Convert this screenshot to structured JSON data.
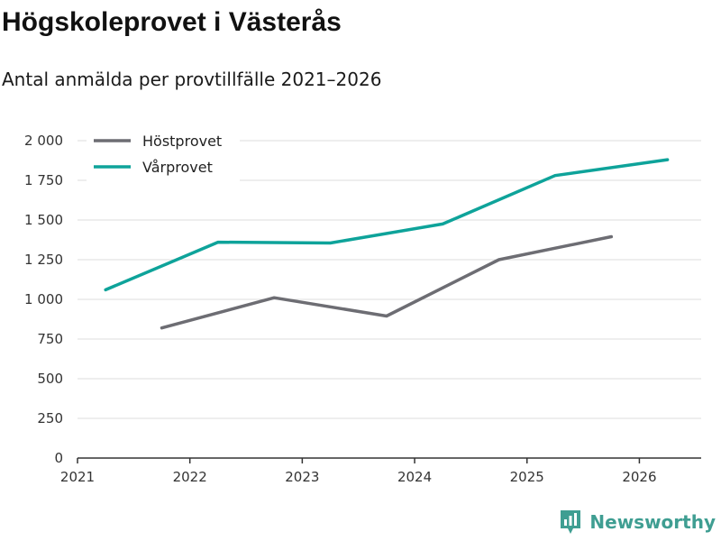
{
  "header": {
    "title": "Högskoleprovet i Västerås",
    "subtitle": "Antal anmälda per provtillfälle 2021–2026"
  },
  "brand": {
    "name": "Newsworthy",
    "color": "#3f9e92",
    "icon": "newsworthy-logo-icon"
  },
  "chart_data": {
    "type": "line",
    "title": "Högskoleprovet i Västerås",
    "subtitle": "Antal anmälda per provtillfälle 2021–2026",
    "xlabel": "",
    "ylabel": "",
    "xlim": [
      2021,
      2026.55
    ],
    "ylim": [
      0,
      2000
    ],
    "x_ticks": [
      2021,
      2022,
      2023,
      2024,
      2025,
      2026
    ],
    "y_ticks": [
      {
        "value": 0,
        "label": "0"
      },
      {
        "value": 250,
        "label": "250"
      },
      {
        "value": 500,
        "label": "500"
      },
      {
        "value": 750,
        "label": "750"
      },
      {
        "value": 1000,
        "label": "1 000"
      },
      {
        "value": 1250,
        "label": "1 250"
      },
      {
        "value": 1500,
        "label": "1 500"
      },
      {
        "value": 1750,
        "label": "1 750"
      },
      {
        "value": 2000,
        "label": "2 000"
      }
    ],
    "grid": true,
    "legend_position": "top-left",
    "series": [
      {
        "name": "Höstprovet",
        "color": "#6d6d73",
        "x": [
          2021.75,
          2022.75,
          2023.75,
          2024.75,
          2025.75
        ],
        "values": [
          820,
          1010,
          895,
          1250,
          1395
        ]
      },
      {
        "name": "Vårprovet",
        "color": "#0ea39a",
        "x": [
          2021.25,
          2022.25,
          2023.25,
          2024.25,
          2025.25,
          2026.25
        ],
        "values": [
          1060,
          1360,
          1355,
          1475,
          1780,
          1880
        ]
      }
    ]
  }
}
